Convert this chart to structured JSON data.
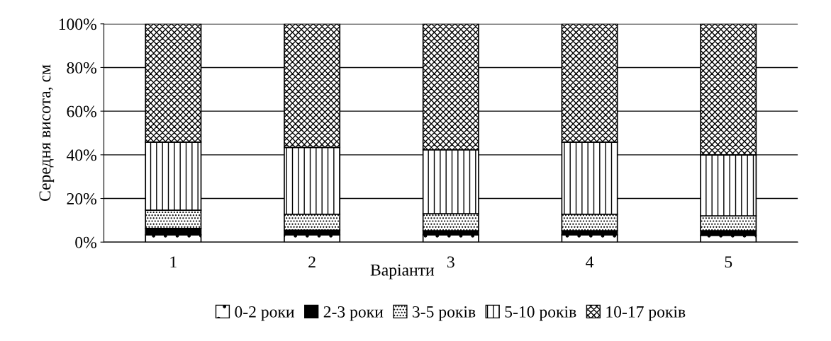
{
  "chart_data": {
    "type": "bar",
    "stacked": true,
    "xlabel": "Варіанти",
    "ylabel": "Середня висота, см",
    "categories": [
      "1",
      "2",
      "3",
      "4",
      "5"
    ],
    "series": [
      {
        "name": "0-2 роки",
        "color": "#000000",
        "values": [
          3.3,
          3.3,
          3.3,
          3.3,
          3.1
        ]
      },
      {
        "name": "2-3 роки",
        "color": "#000000",
        "values": [
          3.0,
          2.2,
          1.9,
          1.9,
          2.1
        ]
      },
      {
        "name": "3-5 років",
        "color": "#000000",
        "values": [
          8.3,
          7.3,
          7.8,
          7.6,
          6.8
        ]
      },
      {
        "name": "5-10 років",
        "color": "#000000",
        "values": [
          31.2,
          30.6,
          29.3,
          33.0,
          28.0
        ]
      },
      {
        "name": "10-17 років",
        "color": "#000000",
        "values": [
          54.2,
          56.6,
          57.7,
          54.2,
          60.0
        ]
      }
    ],
    "ylim": [
      0,
      100
    ],
    "yticks": [
      {
        "value": 0,
        "label": "0%"
      },
      {
        "value": 20,
        "label": "20%"
      },
      {
        "value": 40,
        "label": "40%"
      },
      {
        "value": 60,
        "label": "60%"
      },
      {
        "value": 80,
        "label": "80%"
      },
      {
        "value": 100,
        "label": "100%"
      }
    ],
    "grid": "y",
    "legend": "bottom"
  }
}
